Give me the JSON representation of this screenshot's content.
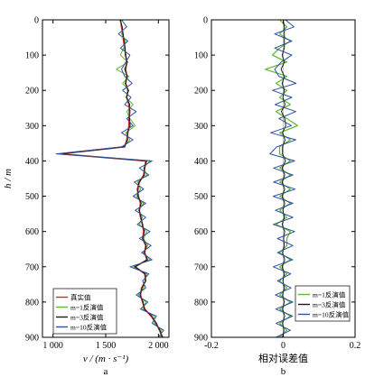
{
  "chart_data": [
    {
      "type": "line",
      "panel_label": "a",
      "xlabel": "v / (m · s⁻¹)",
      "ylabel": "h / m",
      "xlim": [
        900,
        2100
      ],
      "ylim": [
        0,
        900
      ],
      "y_inverted": true,
      "x_ticks": [
        "1 000",
        "1 500",
        "2 000"
      ],
      "x_tick_values": [
        1000,
        1500,
        2000
      ],
      "y_ticks": [
        "0",
        "100",
        "200",
        "300",
        "400",
        "500",
        "600",
        "700",
        "800",
        "900"
      ],
      "legend_position": "bottom-left",
      "depth": [
        0,
        20,
        40,
        60,
        80,
        100,
        120,
        140,
        160,
        180,
        200,
        220,
        240,
        260,
        280,
        300,
        320,
        340,
        360,
        380,
        400,
        420,
        440,
        460,
        480,
        500,
        520,
        540,
        560,
        580,
        600,
        620,
        640,
        660,
        680,
        700,
        720,
        740,
        760,
        780,
        800,
        820,
        840,
        860,
        880,
        900
      ],
      "series": [
        {
          "name": "真实值",
          "color": "#d7261e",
          "values": [
            1640,
            1650,
            1660,
            1670,
            1680,
            1690,
            1700,
            1690,
            1700,
            1690,
            1710,
            1700,
            1720,
            1730,
            1720,
            1720,
            1710,
            1700,
            1680,
            1070,
            1880,
            1870,
            1860,
            1820,
            1800,
            1810,
            1830,
            1820,
            1830,
            1850,
            1860,
            1850,
            1880,
            1870,
            1890,
            1780,
            1870,
            1880,
            1840,
            1830,
            1850,
            1870,
            1930,
            1980,
            2010,
            2040
          ]
        },
        {
          "name": "m=1反演值",
          "color": "#5cb82e",
          "values": [
            1630,
            1660,
            1650,
            1690,
            1670,
            1640,
            1710,
            1600,
            1720,
            1660,
            1720,
            1690,
            1760,
            1700,
            1730,
            1780,
            1690,
            1730,
            1670,
            1060,
            1920,
            1860,
            1890,
            1800,
            1830,
            1790,
            1860,
            1810,
            1850,
            1820,
            1890,
            1860,
            1900,
            1860,
            1920,
            1760,
            1890,
            1870,
            1860,
            1810,
            1880,
            1850,
            1960,
            1960,
            2030,
            2020
          ]
        },
        {
          "name": "m=3反演值",
          "color": "#1a1a1a",
          "values": [
            1640,
            1655,
            1665,
            1675,
            1685,
            1685,
            1705,
            1680,
            1705,
            1685,
            1715,
            1698,
            1728,
            1722,
            1726,
            1732,
            1706,
            1708,
            1676,
            1068,
            1890,
            1865,
            1868,
            1815,
            1808,
            1805,
            1838,
            1818,
            1836,
            1845,
            1868,
            1852,
            1886,
            1866,
            1898,
            1775,
            1875,
            1878,
            1845,
            1826,
            1856,
            1866,
            1938,
            1976,
            2014,
            2036
          ]
        },
        {
          "name": "m=10反演值",
          "color": "#2f4f9e",
          "values": [
            1650,
            1700,
            1620,
            1710,
            1640,
            1730,
            1690,
            1650,
            1680,
            1750,
            1660,
            1740,
            1680,
            1790,
            1700,
            1760,
            1650,
            1760,
            1650,
            1030,
            1940,
            1820,
            1910,
            1770,
            1860,
            1760,
            1880,
            1780,
            1880,
            1800,
            1920,
            1820,
            1930,
            1840,
            1940,
            1730,
            1910,
            1850,
            1880,
            1790,
            1900,
            1830,
            1980,
            1940,
            2050,
            2000
          ]
        }
      ]
    },
    {
      "type": "line",
      "panel_label": "b",
      "xlabel": "相对误差值",
      "xlim": [
        -0.2,
        0.2
      ],
      "ylim": [
        0,
        900
      ],
      "y_inverted": true,
      "x_ticks": [
        "-0.2",
        "0",
        "0.2"
      ],
      "x_tick_values": [
        -0.2,
        0,
        0.2
      ],
      "y_ticks": [
        "0",
        "100",
        "200",
        "300",
        "400",
        "500",
        "600",
        "700",
        "800",
        "900"
      ],
      "legend_position": "bottom-right",
      "depth": [
        0,
        20,
        40,
        60,
        80,
        100,
        120,
        140,
        160,
        180,
        200,
        220,
        240,
        260,
        280,
        300,
        320,
        340,
        360,
        380,
        400,
        420,
        440,
        460,
        480,
        500,
        520,
        540,
        560,
        580,
        600,
        620,
        640,
        660,
        680,
        700,
        720,
        740,
        760,
        780,
        800,
        820,
        840,
        860,
        880,
        900
      ],
      "series": [
        {
          "name": "m=1反演值",
          "color": "#5cb82e",
          "values": [
            -0.01,
            0.01,
            -0.01,
            0.02,
            -0.01,
            -0.03,
            0.01,
            -0.05,
            0.01,
            -0.02,
            0.01,
            -0.01,
            0.02,
            -0.02,
            0.01,
            0.04,
            -0.01,
            0.02,
            -0.01,
            -0.01,
            0.02,
            -0.01,
            0.02,
            -0.01,
            0.02,
            -0.01,
            0.02,
            -0.01,
            0.01,
            -0.02,
            0.02,
            0.01,
            0.01,
            -0.01,
            0.02,
            -0.01,
            0.01,
            -0.01,
            0.01,
            -0.01,
            0.02,
            -0.01,
            0.02,
            -0.01,
            0.01,
            -0.01
          ]
        },
        {
          "name": "m=3反演值",
          "color": "#1a1a1a",
          "values": [
            0,
            0.003,
            0.003,
            0.003,
            0.003,
            -0.003,
            0.003,
            -0.006,
            0.003,
            -0.003,
            0.003,
            -0.001,
            0.005,
            -0.005,
            0.004,
            0.007,
            -0.002,
            0.005,
            -0.002,
            -0.002,
            0.006,
            -0.003,
            0.004,
            -0.003,
            0.004,
            -0.003,
            0.004,
            -0.001,
            0.003,
            -0.003,
            0.004,
            0.001,
            0.003,
            -0.002,
            0.004,
            -0.003,
            0.003,
            -0.001,
            0.003,
            -0.002,
            0.003,
            -0.002,
            0.004,
            -0.002,
            0.002,
            -0.002
          ]
        },
        {
          "name": "m=10反演值",
          "color": "#2f4f9e",
          "values": [
            0.006,
            0.03,
            -0.024,
            0.024,
            -0.024,
            0.024,
            -0.006,
            -0.024,
            -0.012,
            0.036,
            -0.03,
            0.024,
            -0.023,
            0.035,
            -0.012,
            0.023,
            -0.035,
            0.035,
            -0.018,
            -0.037,
            0.032,
            -0.027,
            0.027,
            -0.027,
            0.033,
            -0.028,
            0.027,
            -0.022,
            0.027,
            -0.028,
            0.032,
            -0.016,
            0.027,
            -0.016,
            0.026,
            -0.028,
            0.021,
            -0.016,
            0.022,
            -0.022,
            0.027,
            -0.021,
            0.026,
            -0.02,
            0.02,
            -0.02
          ]
        }
      ]
    }
  ]
}
